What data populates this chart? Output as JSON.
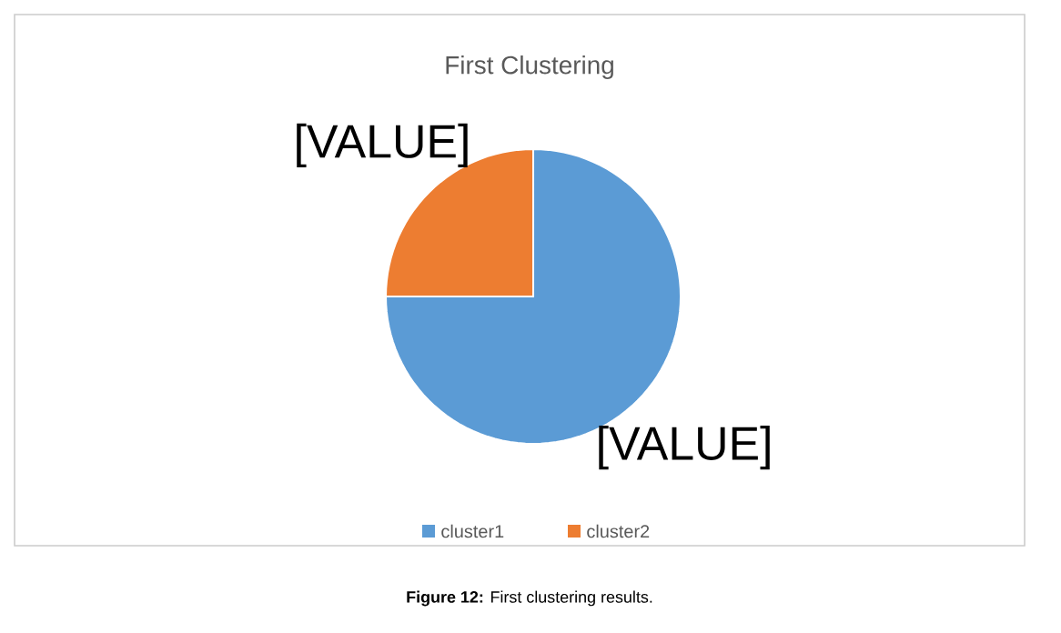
{
  "chart_data": {
    "type": "pie",
    "title": "First Clustering",
    "categories": [
      "cluster1",
      "cluster2"
    ],
    "values": [
      75,
      25
    ],
    "colors": [
      "#5b9bd5",
      "#ed7d31"
    ],
    "value_labels": [
      "[VALUE]",
      "[VALUE]"
    ],
    "legend": "bottom",
    "annotations": [
      "**Figure 12:** First clustering results."
    ]
  }
}
